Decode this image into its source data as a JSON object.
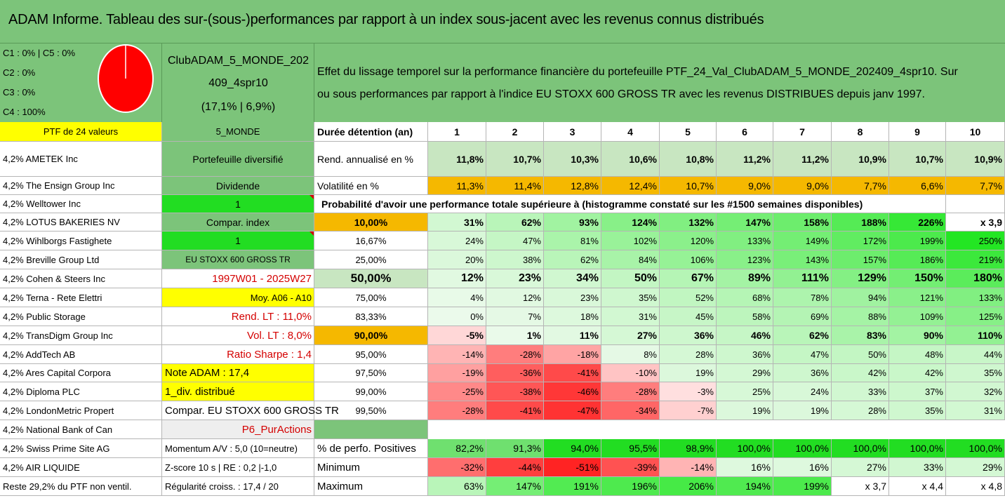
{
  "title": "ADAM Informe. Tableau des sur-(sous-)performances par rapport à un index sous-jacent avec les revenus connus distribués",
  "summary": {
    "line1": "C1 : 0% | C5 : 0%",
    "line2": "C2 : 0%",
    "line3": "C3 : 0%",
    "line4": "C4 : 100%",
    "pie_color": "#ff0000"
  },
  "portfolio": {
    "name_line1": "ClubADAM_5_MONDE_202",
    "name_line2": "409_4spr10",
    "name_line3": "(17,1% | 6,9%)"
  },
  "description": {
    "line1": "Effet du lissage temporel sur la performance financière du portefeuille PTF_24_Val_ClubADAM_5_MONDE_202409_4spr10. Sur",
    "line2": "ou sous performances par rapport à l'indice EU STOXX 600 GROSS TR avec les revenus DISTRIBUES depuis janv 1997."
  },
  "ptf_header": "PTF de 24 valeurs",
  "holdings": [
    "4,2% AMETEK Inc",
    "4,2% The Ensign Group Inc",
    "4,2% Welltower Inc",
    "4,2% LOTUS BAKERIES NV",
    "4,2% Wihlborgs Fastighete",
    "4,2% Breville Group Ltd",
    "4,2% Cohen & Steers Inc",
    "4,2% Terna - Rete Elettri",
    "4,2% Public Storage",
    "4,2% TransDigm Group Inc",
    "4,2% AddTech AB",
    "4,2% Ares Capital Corpora",
    "4,2% Diploma PLC",
    "4,2% LondonMetric Propert",
    "4,2% National Bank of Can",
    "4,2% Swiss Prime Site AG",
    "4,2% AIR LIQUIDE",
    "Reste 29,2% du PTF non ventil."
  ],
  "info_column": [
    "5_MONDE",
    "Portefeuille diversifié",
    "Dividende",
    "1",
    "Compar. index",
    "1",
    "EU STOXX 600 GROSS TR",
    "1997W01 - 2025W27",
    "Moy. A06 - A10",
    "Rend. LT : 11,0%",
    "Vol. LT : 8,0%",
    "Ratio Sharpe : 1,4",
    "Note ADAM : 17,4",
    "1_div. distribué",
    "Compar. EU STOXX 600 GROSS TR",
    "P6_PurActions",
    "Momentum A/V : 5,0 (10=neutre)",
    "Z-score 10 s | RE : 0,2 |-1,0",
    "Régularité croiss. : 17,4 / 20"
  ],
  "table": {
    "duration_label": "Durée détention (an)",
    "years": [
      "1",
      "2",
      "3",
      "4",
      "5",
      "6",
      "7",
      "8",
      "9",
      "10"
    ],
    "rend_label": "Rend. annualisé en %",
    "rend": [
      "11,8%",
      "10,7%",
      "10,3%",
      "10,6%",
      "10,8%",
      "11,2%",
      "11,2%",
      "10,9%",
      "10,7%",
      "10,9%"
    ],
    "vol_label": "Volatilité en %",
    "vol": [
      "11,3%",
      "11,4%",
      "12,8%",
      "12,4%",
      "10,7%",
      "9,0%",
      "9,0%",
      "7,7%",
      "6,6%",
      "7,7%"
    ],
    "prob_label": "Probabilité d'avoir une performance totale supérieure à (histogramme constaté sur les #1500 semaines disponibles)",
    "prob_rows": [
      {
        "p": "10,00%",
        "v": [
          "31%",
          "62%",
          "93%",
          "124%",
          "132%",
          "147%",
          "158%",
          "188%",
          "226%",
          "x 3,9"
        ]
      },
      {
        "p": "16,67%",
        "v": [
          "24%",
          "47%",
          "81%",
          "102%",
          "120%",
          "133%",
          "149%",
          "172%",
          "199%",
          "250%"
        ]
      },
      {
        "p": "25,00%",
        "v": [
          "20%",
          "38%",
          "62%",
          "84%",
          "106%",
          "123%",
          "143%",
          "157%",
          "186%",
          "219%"
        ]
      },
      {
        "p": "50,00%",
        "v": [
          "12%",
          "23%",
          "34%",
          "50%",
          "67%",
          "89%",
          "111%",
          "129%",
          "150%",
          "180%"
        ]
      },
      {
        "p": "75,00%",
        "v": [
          "4%",
          "12%",
          "23%",
          "35%",
          "52%",
          "68%",
          "78%",
          "94%",
          "121%",
          "133%"
        ]
      },
      {
        "p": "83,33%",
        "v": [
          "0%",
          "7%",
          "18%",
          "31%",
          "45%",
          "58%",
          "69%",
          "88%",
          "109%",
          "125%"
        ]
      },
      {
        "p": "90,00%",
        "v": [
          "-5%",
          "1%",
          "11%",
          "27%",
          "36%",
          "46%",
          "62%",
          "83%",
          "90%",
          "110%"
        ]
      },
      {
        "p": "95,00%",
        "v": [
          "-14%",
          "-28%",
          "-18%",
          "8%",
          "28%",
          "36%",
          "47%",
          "50%",
          "48%",
          "44%"
        ]
      },
      {
        "p": "97,50%",
        "v": [
          "-19%",
          "-36%",
          "-41%",
          "-10%",
          "19%",
          "29%",
          "36%",
          "42%",
          "42%",
          "35%"
        ]
      },
      {
        "p": "99,00%",
        "v": [
          "-25%",
          "-38%",
          "-46%",
          "-28%",
          "-3%",
          "25%",
          "24%",
          "33%",
          "37%",
          "32%"
        ]
      },
      {
        "p": "99,50%",
        "v": [
          "-28%",
          "-41%",
          "-47%",
          "-34%",
          "-7%",
          "19%",
          "19%",
          "28%",
          "35%",
          "31%"
        ]
      }
    ],
    "pos_label": "% de perfo. Positives",
    "pos": [
      "82,2%",
      "91,3%",
      "94,0%",
      "95,5%",
      "98,9%",
      "100,0%",
      "100,0%",
      "100,0%",
      "100,0%",
      "100,0%"
    ],
    "min_label": "Minimum",
    "min": [
      "-32%",
      "-44%",
      "-51%",
      "-39%",
      "-14%",
      "16%",
      "16%",
      "27%",
      "33%",
      "29%"
    ],
    "max_label": "Maximum",
    "max": [
      "63%",
      "147%",
      "191%",
      "196%",
      "206%",
      "194%",
      "199%",
      "x 3,7",
      "x 4,4",
      "x 4,8"
    ]
  }
}
